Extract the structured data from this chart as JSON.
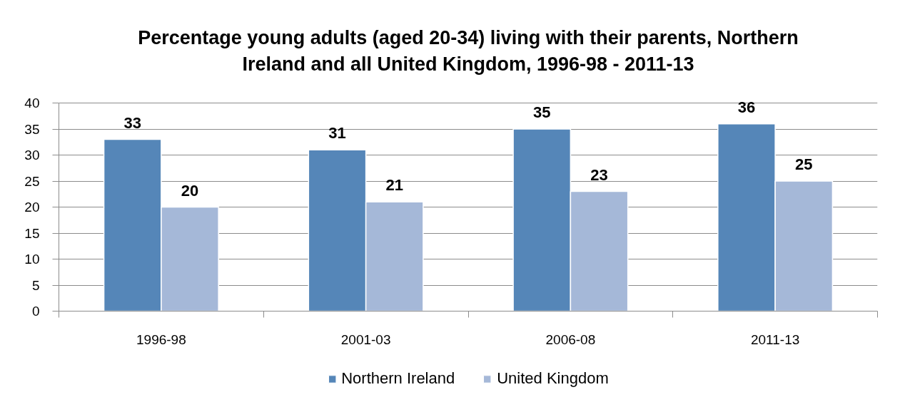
{
  "chart_data": {
    "type": "bar",
    "title": "Percentage young adults (aged 20-34) living with their parents, Northern Ireland and all United Kingdom, 1996-98 - 2011-13",
    "categories": [
      "1996-98",
      "2001-03",
      "2006-08",
      "2011-13"
    ],
    "series": [
      {
        "name": "Northern Ireland",
        "color": "#5586b8",
        "values": [
          33,
          31,
          35,
          36
        ]
      },
      {
        "name": "United Kingdom",
        "color": "#a5b8d8",
        "values": [
          20,
          21,
          23,
          25
        ]
      }
    ],
    "ylim": [
      0,
      40
    ],
    "yticks": [
      0,
      5,
      10,
      15,
      20,
      25,
      30,
      35,
      40
    ],
    "grid": "y",
    "legend": "bottom",
    "data_labels": true
  }
}
